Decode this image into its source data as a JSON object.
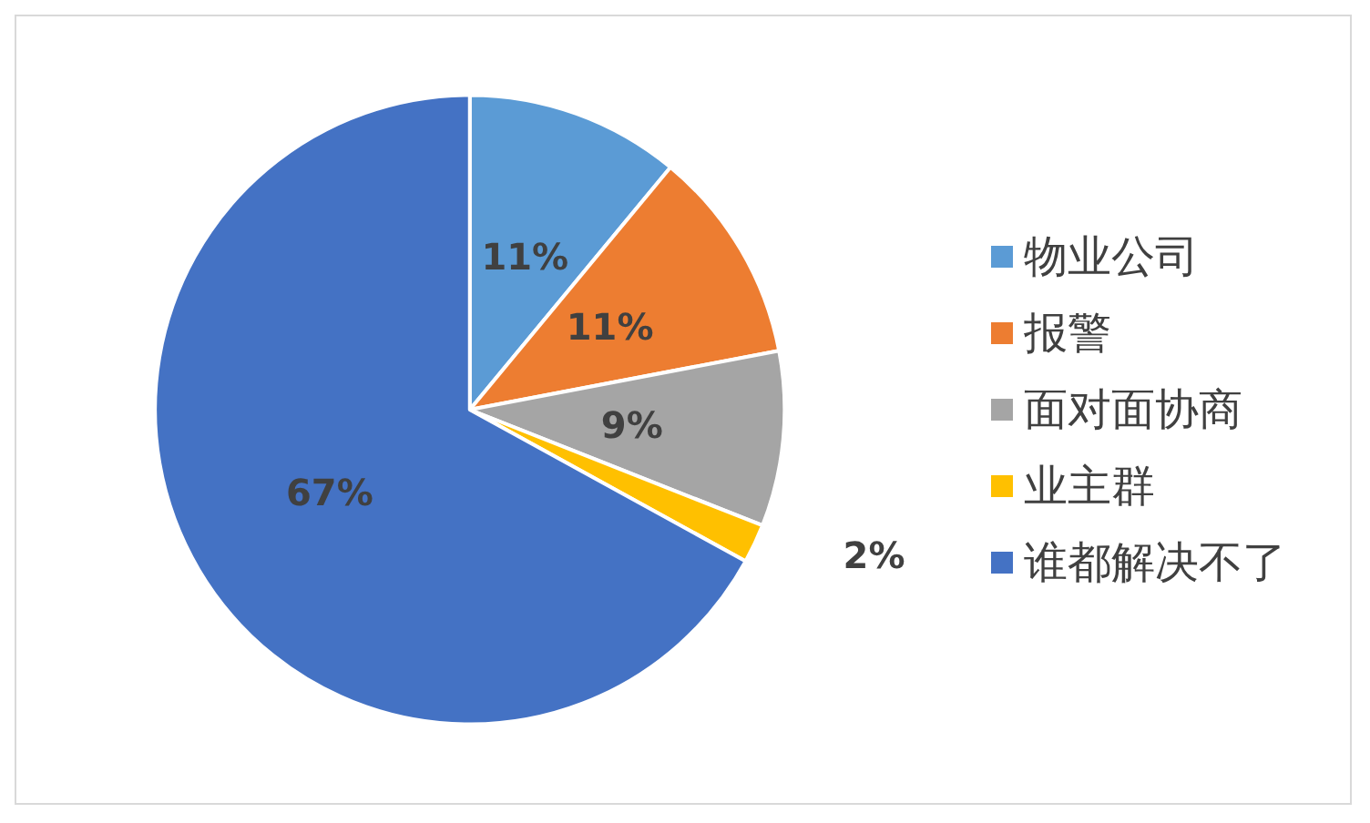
{
  "chart_data": {
    "type": "pie",
    "categories": [
      "物业公司",
      "报警",
      "面对面协商",
      "业主群",
      "谁都解决不了"
    ],
    "values": [
      11,
      11,
      9,
      2,
      67
    ],
    "colors": [
      "#5b9bd5",
      "#ed7d31",
      "#a5a5a5",
      "#ffc000",
      "#4472c4"
    ],
    "value_labels": [
      "11%",
      "11%",
      "9%",
      "2%",
      "67%"
    ],
    "legend": "right"
  }
}
